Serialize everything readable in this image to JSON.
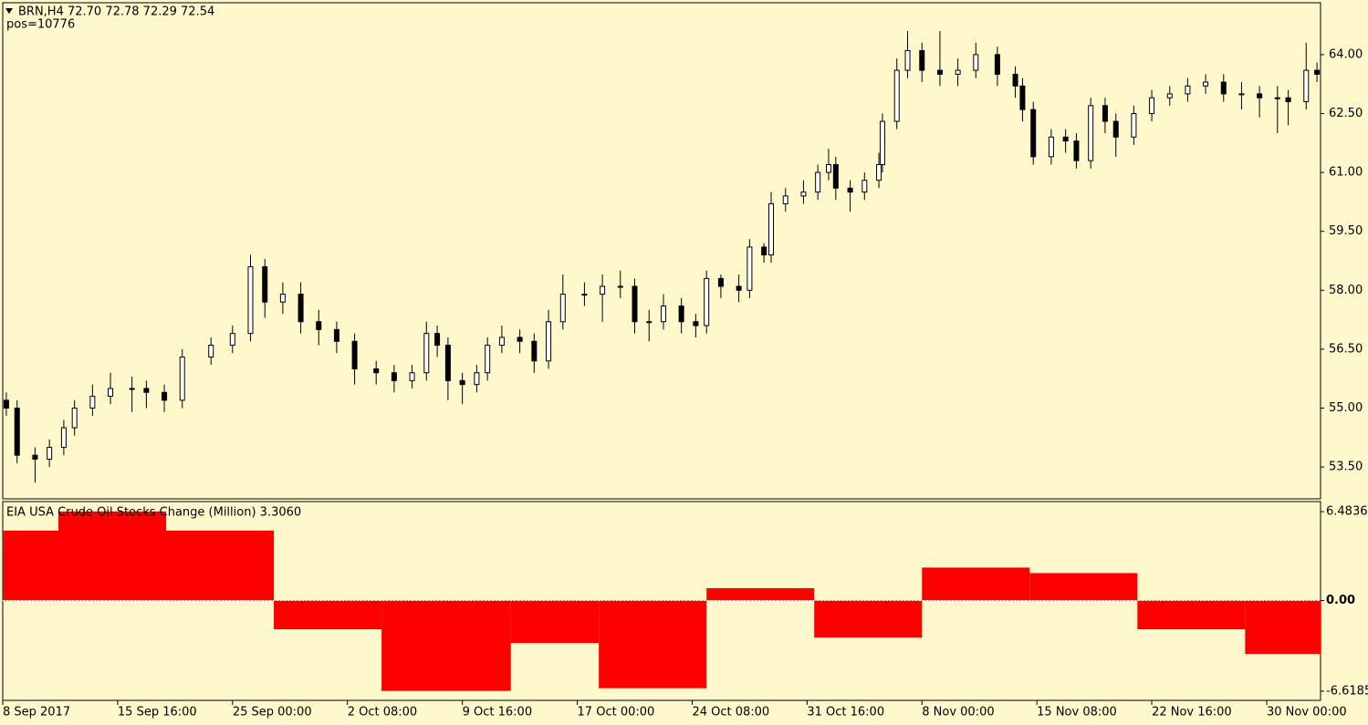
{
  "chart_data": [
    {
      "type": "candlestick",
      "title": "BRN,H4  72.70 72.78 72.29 72.54",
      "subtitle": "pos=10776",
      "color": "#000000",
      "up_color": "#ffffff",
      "down_color": "#000000",
      "xlim": [
        0,
        367
      ],
      "x": [
        1,
        4,
        9,
        13,
        17,
        20,
        25,
        30,
        36,
        40,
        45,
        50,
        58,
        64,
        69,
        73,
        78,
        83,
        88,
        93,
        98,
        104,
        109,
        114,
        118,
        121,
        124,
        128,
        132,
        135,
        139,
        144,
        148,
        152,
        156,
        162,
        167,
        172,
        176,
        180,
        184,
        189,
        193,
        196,
        200,
        205,
        208,
        212,
        214,
        218,
        223,
        227,
        230,
        232,
        236,
        240,
        244,
        245,
        249,
        252,
        256,
        261,
        266,
        271,
        277,
        282,
        284,
        287,
        292,
        296,
        299,
        303,
        307,
        310,
        315,
        320,
        325,
        330,
        335,
        340,
        345,
        350,
        355,
        358,
        363,
        366
      ],
      "open": [
        55.2,
        55.0,
        53.8,
        53.7,
        54.0,
        54.5,
        55.0,
        55.3,
        55.5,
        55.5,
        55.4,
        55.2,
        56.3,
        56.6,
        56.9,
        58.6,
        57.7,
        57.9,
        57.2,
        57.0,
        56.7,
        56.0,
        55.9,
        55.7,
        55.9,
        56.9,
        56.6,
        55.7,
        55.6,
        55.9,
        56.6,
        56.8,
        56.7,
        56.2,
        57.2,
        57.9,
        57.9,
        58.1,
        58.1,
        57.2,
        57.2,
        57.6,
        57.2,
        57.1,
        58.3,
        58.1,
        58.0,
        59.1,
        58.9,
        60.2,
        60.4,
        60.5,
        61.0,
        61.2,
        60.6,
        60.5,
        60.8,
        61.2,
        62.3,
        63.6,
        64.1,
        63.6,
        63.5,
        63.6,
        64.0,
        63.5,
        63.2,
        62.6,
        61.4,
        61.9,
        61.8,
        61.3,
        62.7,
        62.3,
        61.9,
        62.5,
        62.9,
        63.0,
        63.2,
        63.3,
        63.0,
        63.0,
        62.9,
        62.9,
        62.8,
        63.6
      ],
      "high": [
        55.4,
        55.2,
        54.0,
        54.2,
        54.7,
        55.2,
        55.6,
        55.9,
        55.8,
        55.7,
        55.6,
        56.5,
        56.8,
        57.1,
        58.9,
        58.8,
        58.2,
        58.2,
        57.5,
        57.2,
        56.9,
        56.2,
        56.1,
        56.1,
        57.2,
        57.1,
        56.8,
        55.9,
        56.1,
        56.8,
        57.1,
        57.0,
        56.9,
        57.5,
        58.4,
        58.2,
        58.4,
        58.5,
        58.3,
        57.5,
        57.9,
        57.8,
        57.4,
        58.5,
        58.4,
        58.4,
        59.3,
        59.2,
        60.5,
        60.6,
        60.8,
        61.2,
        61.6,
        61.4,
        60.8,
        61.0,
        61.5,
        62.5,
        63.9,
        64.6,
        64.3,
        64.6,
        63.9,
        64.3,
        64.2,
        63.7,
        63.4,
        62.8,
        62.1,
        62.1,
        62.0,
        62.9,
        62.9,
        62.5,
        62.7,
        63.1,
        63.2,
        63.4,
        63.5,
        63.5,
        63.3,
        63.2,
        63.2,
        63.1,
        64.3,
        63.8
      ],
      "low": [
        54.8,
        53.6,
        53.1,
        53.5,
        53.8,
        54.3,
        54.8,
        55.1,
        54.9,
        55.0,
        54.9,
        55.0,
        56.1,
        56.4,
        56.7,
        57.3,
        57.4,
        56.9,
        56.6,
        56.4,
        55.6,
        55.6,
        55.4,
        55.5,
        55.7,
        56.3,
        55.2,
        55.1,
        55.4,
        55.7,
        56.4,
        56.4,
        55.9,
        56.0,
        57.0,
        57.6,
        57.2,
        57.8,
        56.9,
        56.7,
        57.0,
        56.9,
        56.8,
        56.9,
        57.8,
        57.7,
        57.8,
        58.7,
        58.7,
        60.0,
        60.2,
        60.3,
        60.8,
        60.3,
        60.0,
        60.3,
        60.6,
        61.0,
        62.1,
        63.4,
        63.3,
        63.2,
        63.2,
        63.4,
        63.2,
        62.9,
        62.3,
        61.2,
        61.2,
        61.5,
        61.1,
        61.1,
        62.0,
        61.4,
        61.7,
        62.3,
        62.7,
        62.8,
        63.0,
        62.8,
        62.6,
        62.4,
        62.0,
        62.2,
        62.6,
        63.3
      ],
      "close": [
        55.0,
        53.8,
        53.7,
        54.0,
        54.5,
        55.0,
        55.3,
        55.5,
        55.5,
        55.4,
        55.2,
        56.3,
        56.6,
        56.9,
        58.6,
        57.7,
        57.9,
        57.2,
        57.0,
        56.7,
        56.0,
        55.9,
        55.7,
        55.9,
        56.9,
        56.6,
        55.7,
        55.6,
        55.9,
        56.6,
        56.8,
        56.7,
        56.2,
        57.2,
        57.9,
        57.9,
        58.1,
        58.1,
        57.2,
        57.2,
        57.6,
        57.2,
        57.1,
        58.3,
        58.1,
        58.0,
        59.1,
        58.9,
        60.2,
        60.4,
        60.5,
        61.0,
        61.2,
        60.6,
        60.5,
        60.8,
        61.2,
        62.3,
        63.6,
        64.1,
        63.6,
        63.5,
        63.6,
        64.0,
        63.5,
        63.2,
        62.6,
        61.4,
        61.9,
        61.8,
        61.3,
        62.7,
        62.3,
        61.9,
        62.5,
        62.9,
        63.0,
        63.2,
        63.3,
        63.0,
        63.0,
        62.9,
        62.9,
        62.8,
        63.6,
        63.5
      ],
      "ylim": [
        52.69,
        65.32
      ],
      "yticks": [
        {
          "value": 53.5,
          "label": "53.50"
        },
        {
          "value": 55,
          "label": "55.00"
        },
        {
          "value": 56.5,
          "label": "56.50"
        },
        {
          "value": 58,
          "label": "58.00"
        },
        {
          "value": 59.5,
          "label": "59.50"
        },
        {
          "value": 61,
          "label": "61.00"
        },
        {
          "value": 62.5,
          "label": "62.50"
        },
        {
          "value": 64,
          "label": "64.00"
        }
      ]
    },
    {
      "type": "histogram",
      "title": "EIA USA Crude Oil Stocks Change (Million) 3.3060",
      "color": "#ff0000",
      "xlim": [
        0,
        367
      ],
      "bins": [
        0,
        15.5,
        45.5,
        75.5,
        105.5,
        141.5,
        166,
        196,
        226,
        256,
        286,
        316,
        346,
        367
      ],
      "values": [
        5.1,
        6.5,
        5.1,
        -2.1,
        -6.6,
        -3.1,
        -6.4,
        0.9,
        -2.7,
        2.4,
        2.0,
        -2.1,
        -3.9
      ],
      "ylim": [
        -7.29,
        7.22
      ],
      "yticks": [
        -6.6185,
        {
          "value": 0,
          "label": "0.00"
        },
        6.4836
      ],
      "xticks": [
        {
          "value": 0,
          "label": "8 Sep 2017"
        },
        {
          "value": 32,
          "label": "15 Sep 16:00"
        },
        {
          "value": 64,
          "label": "25 Sep 00:00"
        },
        {
          "value": 96,
          "label": "2 Oct 08:00"
        },
        {
          "value": 128,
          "label": "9 Oct 16:00"
        },
        {
          "value": 160,
          "label": "17 Oct 00:00"
        },
        {
          "value": 192,
          "label": "24 Oct 08:00"
        },
        {
          "value": 224,
          "label": "31 Oct 16:00"
        },
        {
          "value": 256,
          "label": "8 Nov 00:00"
        },
        {
          "value": 288,
          "label": "15 Nov 08:00"
        },
        {
          "value": 320,
          "label": "22 Nov 16:00"
        },
        {
          "value": 352,
          "label": "30 Nov 00:00"
        }
      ]
    }
  ]
}
